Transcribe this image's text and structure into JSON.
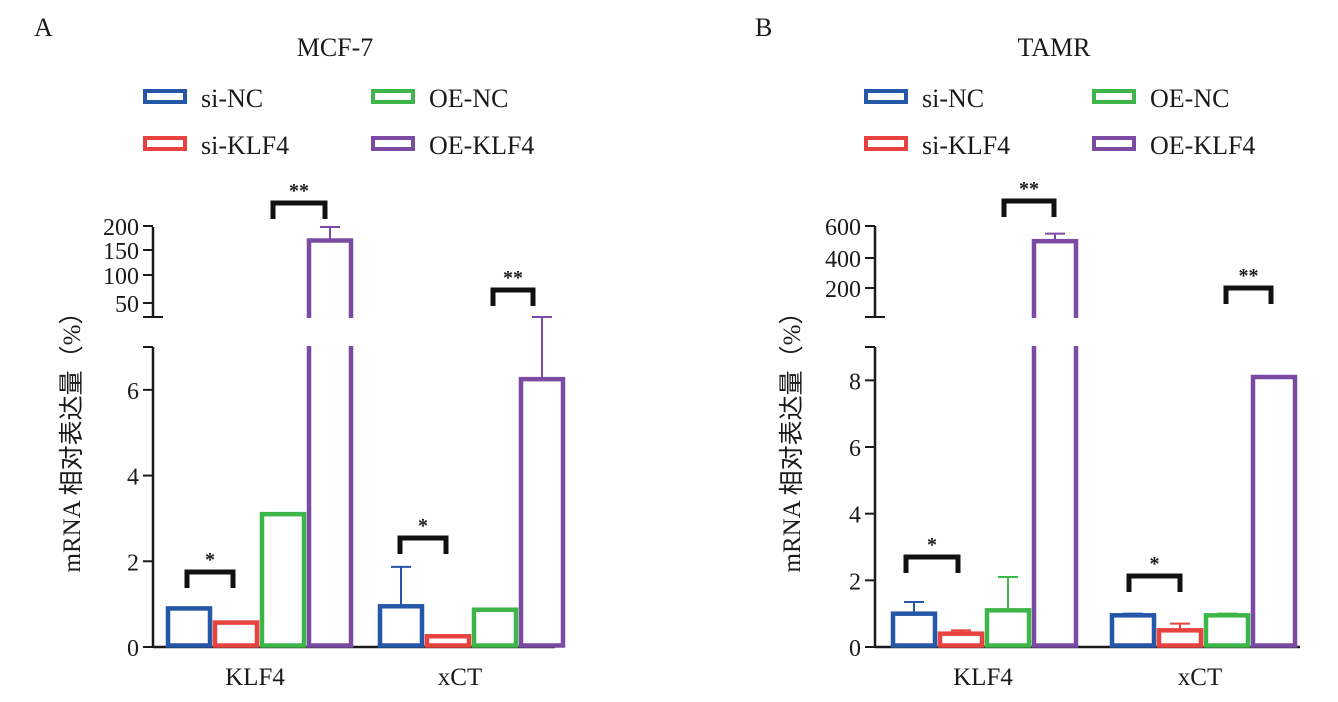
{
  "chart_data": [
    {
      "type": "bar",
      "panel": "A",
      "title": "MCF-7",
      "ylabel": "mRNA 相对表达量（%）",
      "categories": [
        "KLF4",
        "xCT"
      ],
      "series": [
        {
          "name": "si-NC",
          "color": "#2557a8",
          "values": [
            0.9,
            0.95
          ],
          "errors": [
            0,
            0.92
          ]
        },
        {
          "name": "si-KLF4",
          "color": "#e8423f",
          "values": [
            0.57,
            0.25
          ],
          "errors": [
            0,
            0
          ]
        },
        {
          "name": "OE-NC",
          "color": "#3db549",
          "values": [
            3.1,
            0.87
          ],
          "errors": [
            0,
            0
          ]
        },
        {
          "name": "OE-KLF4",
          "color": "#7b4ba3",
          "values": [
            170,
            6.25
          ],
          "errors": [
            30,
            11
          ]
        }
      ],
      "ylim_lower": [
        0,
        7
      ],
      "ylim_upper": [
        0,
        200
      ],
      "yticks_lower": [
        "0",
        "2",
        "4",
        "6"
      ],
      "yticks_upper": [
        "50",
        "100",
        "150",
        "200"
      ],
      "annotations": [
        {
          "category": "KLF4",
          "pair": [
            "si-NC",
            "si-KLF4"
          ],
          "label": "*"
        },
        {
          "category": "KLF4",
          "pair": [
            "OE-NC",
            "OE-KLF4"
          ],
          "label": "**"
        },
        {
          "category": "xCT",
          "pair": [
            "si-NC",
            "si-KLF4"
          ],
          "label": "*"
        },
        {
          "category": "xCT",
          "pair": [
            "OE-NC",
            "OE-KLF4"
          ],
          "label": "**"
        }
      ]
    },
    {
      "type": "bar",
      "panel": "B",
      "title": "TAMR",
      "ylabel": "mRNA 相对表达量（%）",
      "categories": [
        "KLF4",
        "xCT"
      ],
      "series": [
        {
          "name": "si-NC",
          "color": "#2557a8",
          "values": [
            1.0,
            0.95
          ],
          "errors": [
            0.35,
            0.05
          ]
        },
        {
          "name": "si-KLF4",
          "color": "#e8423f",
          "values": [
            0.4,
            0.5
          ],
          "errors": [
            0.1,
            0.2
          ]
        },
        {
          "name": "OE-NC",
          "color": "#3db549",
          "values": [
            1.1,
            0.95
          ],
          "errors": [
            1.0,
            0.05
          ]
        },
        {
          "name": "OE-KLF4",
          "color": "#7b4ba3",
          "values": [
            500,
            8.1
          ],
          "errors": [
            50,
            0
          ]
        }
      ],
      "ylim_lower": [
        0,
        9
      ],
      "ylim_upper": [
        0,
        600
      ],
      "yticks_lower": [
        "0",
        "2",
        "4",
        "6",
        "8"
      ],
      "yticks_upper": [
        "200",
        "400",
        "600"
      ],
      "annotations": [
        {
          "category": "KLF4",
          "pair": [
            "si-NC",
            "si-KLF4"
          ],
          "label": "*"
        },
        {
          "category": "KLF4",
          "pair": [
            "OE-NC",
            "OE-KLF4"
          ],
          "label": "**"
        },
        {
          "category": "xCT",
          "pair": [
            "si-NC",
            "si-KLF4"
          ],
          "label": "*"
        },
        {
          "category": "xCT",
          "pair": [
            "OE-NC",
            "OE-KLF4"
          ],
          "label": "**"
        }
      ]
    }
  ]
}
